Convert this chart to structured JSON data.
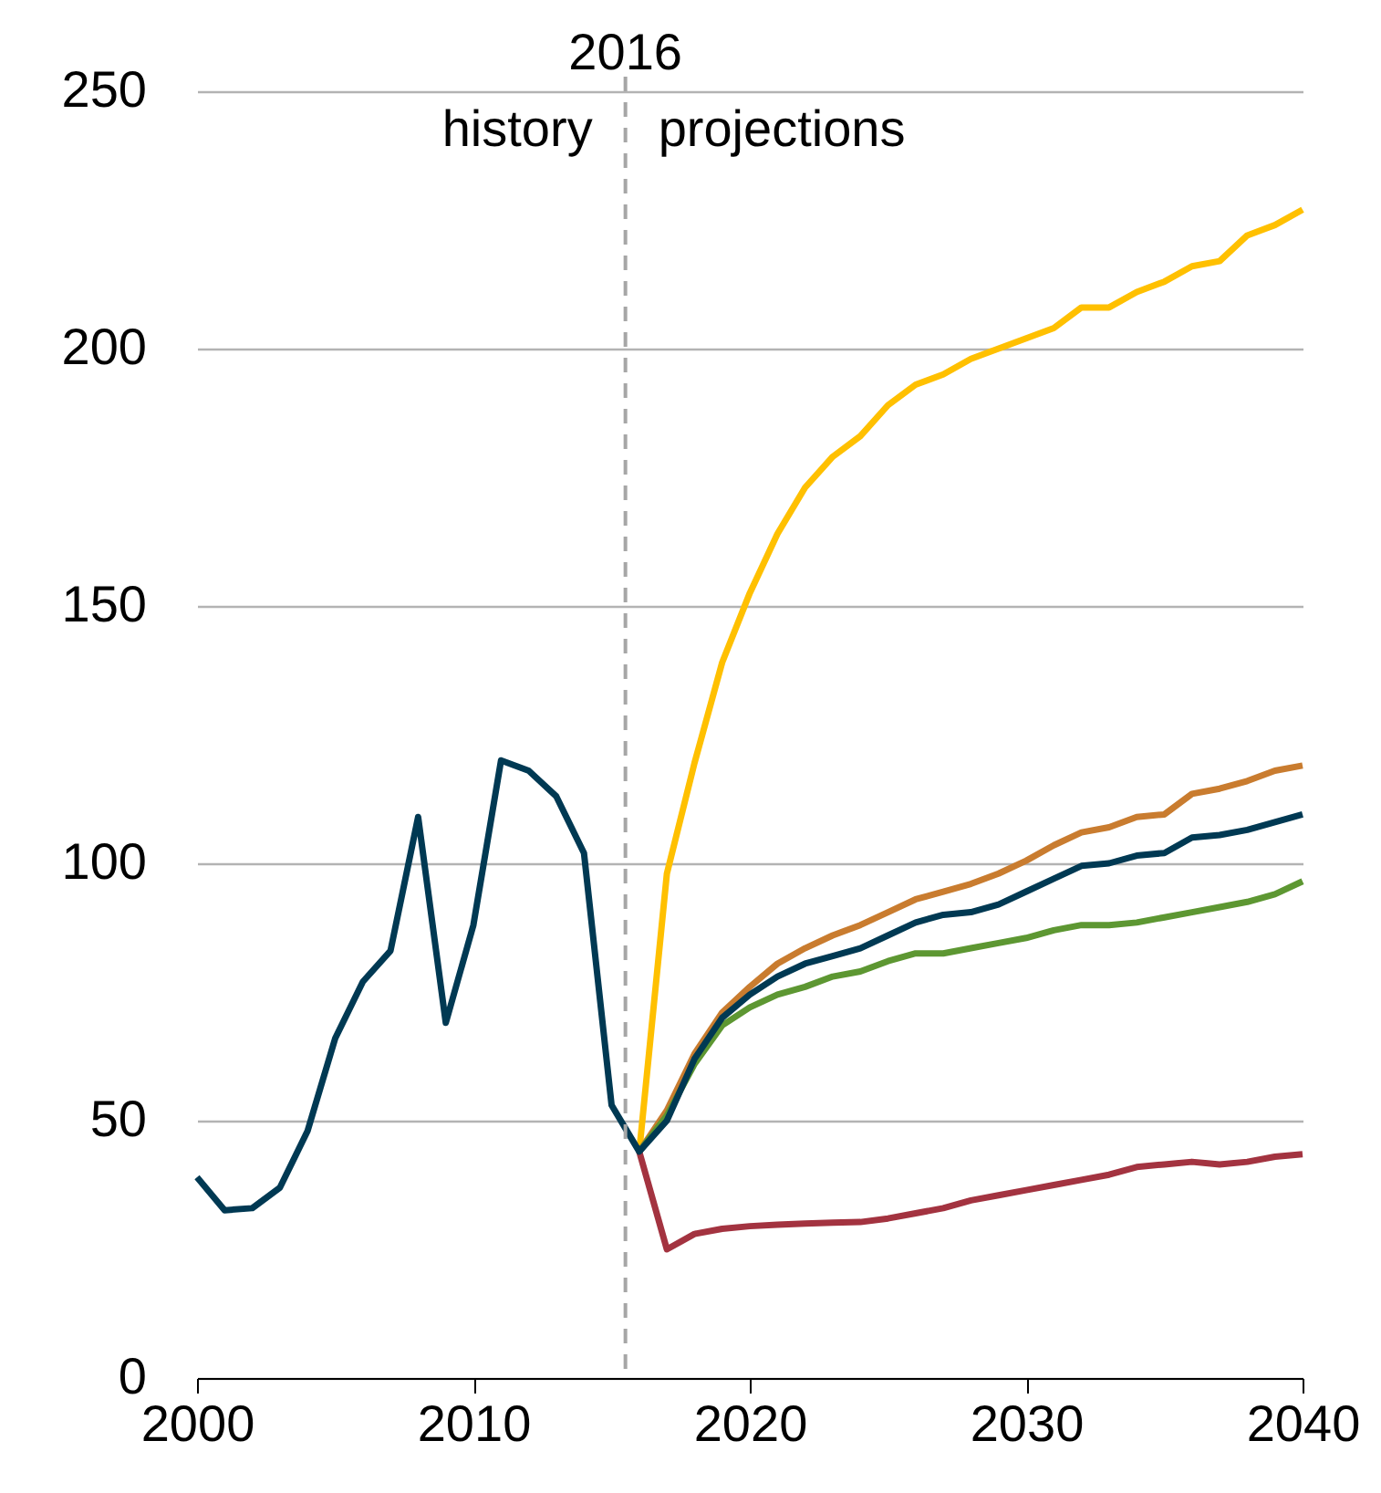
{
  "chart_data": {
    "type": "line",
    "xlim": [
      2000,
      2040
    ],
    "xticks": [
      2000,
      2010,
      2020,
      2030,
      2040
    ],
    "ylim": [
      0,
      250
    ],
    "yticks": [
      0,
      50,
      100,
      150,
      200,
      250
    ],
    "grid": "y",
    "legend": false,
    "line_style": "solid",
    "marker": "none",
    "ref_lines": [
      {
        "axis": "x",
        "value": 2015.5,
        "label": "2016",
        "color": "#a6a6a6",
        "line_style": "dashed"
      }
    ],
    "annotations": [
      "history",
      "projections"
    ],
    "series": [
      {
        "color": "#ffc000",
        "x": [
          2016,
          2017,
          2018,
          2019,
          2020,
          2021,
          2022,
          2023,
          2024,
          2025,
          2026,
          2027,
          2028,
          2029,
          2030,
          2031,
          2032,
          2033,
          2034,
          2035,
          2036,
          2037,
          2038,
          2039,
          2040
        ],
        "values": [
          44,
          98,
          119.5,
          139,
          152.5,
          164,
          173,
          179,
          183,
          189,
          193,
          195,
          198,
          200,
          202,
          204,
          208,
          208,
          211,
          213,
          216,
          217,
          222,
          224,
          227
        ]
      },
      {
        "color": "#c97c2f",
        "x": [
          2016,
          2017,
          2018,
          2019,
          2020,
          2021,
          2022,
          2023,
          2024,
          2025,
          2026,
          2027,
          2028,
          2029,
          2030,
          2031,
          2032,
          2033,
          2034,
          2035,
          2036,
          2037,
          2038,
          2039,
          2040
        ],
        "values": [
          44,
          52,
          63,
          71,
          76,
          80.5,
          83.5,
          86,
          88,
          90.5,
          93,
          94.5,
          96,
          98,
          100.5,
          103.5,
          106,
          107,
          109,
          109.5,
          113.5,
          114.5,
          116,
          118,
          119
        ]
      },
      {
        "color": "#5d9732",
        "x": [
          2016,
          2017,
          2018,
          2019,
          2020,
          2021,
          2022,
          2023,
          2024,
          2025,
          2026,
          2027,
          2028,
          2029,
          2030,
          2031,
          2032,
          2033,
          2034,
          2035,
          2036,
          2037,
          2038,
          2039,
          2040
        ],
        "values": [
          44,
          51,
          61,
          68.5,
          72,
          74.5,
          76,
          78,
          79,
          81,
          82.5,
          82.5,
          83.5,
          84.5,
          85.5,
          87,
          88,
          88,
          88.5,
          89.5,
          90.5,
          91.5,
          92.5,
          94,
          96.5
        ]
      },
      {
        "color": "#a33340",
        "x": [
          2016,
          2017,
          2018,
          2019,
          2020,
          2021,
          2022,
          2023,
          2024,
          2025,
          2026,
          2027,
          2028,
          2029,
          2030,
          2031,
          2032,
          2033,
          2034,
          2035,
          2036,
          2037,
          2038,
          2039,
          2040
        ],
        "values": [
          44,
          25,
          28,
          29,
          29.5,
          29.8,
          30,
          30.2,
          30.3,
          31,
          32,
          33,
          34.5,
          35.5,
          36.5,
          37.5,
          38.5,
          39.5,
          41,
          41.5,
          42,
          41.5,
          42,
          43,
          43.5
        ]
      },
      {
        "color": "#003953",
        "x": [
          2000,
          2001,
          2002,
          2003,
          2004,
          2005,
          2006,
          2007,
          2008,
          2009,
          2010,
          2011,
          2012,
          2013,
          2014,
          2015,
          2016,
          2017,
          2018,
          2019,
          2020,
          2021,
          2022,
          2023,
          2024,
          2025,
          2026,
          2027,
          2028,
          2029,
          2030,
          2031,
          2032,
          2033,
          2034,
          2035,
          2036,
          2037,
          2038,
          2039,
          2040
        ],
        "values": [
          39,
          32.6,
          33,
          37,
          48,
          66,
          77,
          83,
          109,
          69,
          88,
          120,
          118,
          113,
          102,
          53,
          44,
          50,
          62,
          70,
          74.5,
          78,
          80.5,
          82,
          83.5,
          86,
          88.5,
          90,
          90.5,
          92,
          94.5,
          97,
          99.5,
          100,
          101.5,
          102,
          105,
          105.5,
          106.5,
          108,
          109.5
        ]
      }
    ]
  }
}
